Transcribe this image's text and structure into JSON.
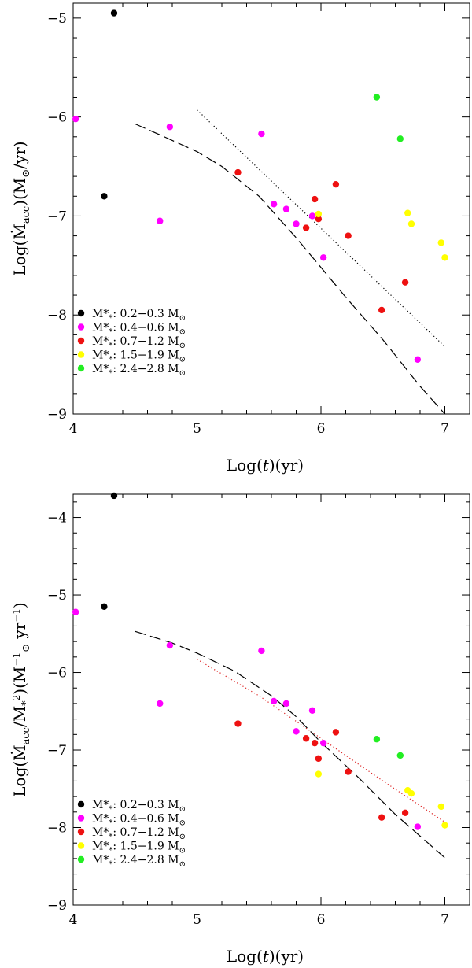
{
  "colors": {
    "black": "#000000",
    "magenta": "#ff00ff",
    "red": "#ee1111",
    "yellow": "#ffff00",
    "green": "#22ee22",
    "dotted_red": "#dd2222"
  },
  "chart_data": [
    {
      "type": "scatter",
      "title": "",
      "xlabel": "Log(t)(yr)",
      "ylabel": "Log(Ṁacc)(M⊙/yr)",
      "xlim": [
        4,
        7.2
      ],
      "ylim": [
        -9,
        -4.85
      ],
      "xticks": [
        4,
        5,
        6,
        7
      ],
      "yticks": [
        -9,
        -8,
        -7,
        -6,
        -5
      ],
      "tick_labels_x": [
        "4",
        "5",
        "6",
        "7"
      ],
      "tick_labels_y": [
        "−9",
        "−8",
        "−7",
        "−6",
        "−5"
      ],
      "legend": [
        {
          "color": "black",
          "name": "M*",
          "range": "0.2−0.3",
          "unit": "M⊙"
        },
        {
          "color": "magenta",
          "name": "M*",
          "range": "0.4−0.6",
          "unit": "M⊙"
        },
        {
          "color": "red",
          "name": "M*",
          "range": "0.7−1.2",
          "unit": "M⊙"
        },
        {
          "color": "yellow",
          "name": "M*",
          "range": "1.5−1.9",
          "unit": "M⊙"
        },
        {
          "color": "green",
          "name": "M*",
          "range": "2.4−2.8",
          "unit": "M⊙"
        }
      ],
      "legend_position": "bottom-left",
      "series": [
        {
          "name": "M*: 0.2−0.3 M⊙",
          "color": "black",
          "points": [
            [
              4.33,
              -4.95
            ],
            [
              4.25,
              -6.8
            ]
          ]
        },
        {
          "name": "M*: 0.4−0.6 M⊙",
          "color": "magenta",
          "points": [
            [
              4.02,
              -6.02
            ],
            [
              4.78,
              -6.1
            ],
            [
              4.7,
              -7.05
            ],
            [
              5.52,
              -6.17
            ],
            [
              5.62,
              -6.88
            ],
            [
              5.72,
              -6.93
            ],
            [
              5.8,
              -7.08
            ],
            [
              5.93,
              -7.0
            ],
            [
              6.02,
              -7.42
            ],
            [
              6.78,
              -8.45
            ]
          ]
        },
        {
          "name": "M*: 0.7−1.2 M⊙",
          "color": "red",
          "points": [
            [
              5.33,
              -6.56
            ],
            [
              5.88,
              -7.12
            ],
            [
              5.95,
              -6.83
            ],
            [
              5.98,
              -7.03
            ],
            [
              6.12,
              -6.68
            ],
            [
              6.22,
              -7.2
            ],
            [
              6.49,
              -7.95
            ],
            [
              6.68,
              -7.67
            ]
          ]
        },
        {
          "name": "M*: 1.5−1.9 M⊙",
          "color": "yellow",
          "points": [
            [
              5.98,
              -6.98
            ],
            [
              6.7,
              -6.97
            ],
            [
              6.73,
              -7.08
            ],
            [
              6.97,
              -7.27
            ],
            [
              7.0,
              -7.42
            ]
          ]
        },
        {
          "name": "M*: 2.4−2.8 M⊙",
          "color": "green",
          "points": [
            [
              6.45,
              -5.8
            ],
            [
              6.64,
              -6.22
            ]
          ]
        }
      ],
      "curves": [
        {
          "name": "dashed model",
          "style": "dashed",
          "color": "black",
          "points": [
            [
              4.5,
              -6.07
            ],
            [
              4.7,
              -6.18
            ],
            [
              5.0,
              -6.35
            ],
            [
              5.2,
              -6.5
            ],
            [
              5.5,
              -6.8
            ],
            [
              5.8,
              -7.22
            ],
            [
              6.0,
              -7.52
            ],
            [
              6.2,
              -7.82
            ],
            [
              6.5,
              -8.25
            ],
            [
              6.8,
              -8.72
            ],
            [
              7.0,
              -9.0
            ]
          ]
        },
        {
          "name": "dotted fit",
          "style": "dotted",
          "color": "black",
          "points": [
            [
              5.0,
              -5.93
            ],
            [
              7.0,
              -8.32
            ]
          ]
        }
      ]
    },
    {
      "type": "scatter",
      "title": "",
      "xlabel": "Log(t)(yr)",
      "ylabel": "Log(Ṁacc/M*²)(M⊙⁻¹ yr⁻¹)",
      "xlim": [
        4,
        7.2
      ],
      "ylim": [
        -9,
        -3.7
      ],
      "xticks": [
        4,
        5,
        6,
        7
      ],
      "yticks": [
        -9,
        -8,
        -7,
        -6,
        -5,
        -4
      ],
      "tick_labels_x": [
        "4",
        "5",
        "6",
        "7"
      ],
      "tick_labels_y": [
        "−9",
        "−8",
        "−7",
        "−6",
        "−5",
        "−4"
      ],
      "legend": [
        {
          "color": "black",
          "name": "M*",
          "range": "0.2−0.3",
          "unit": "M⊙"
        },
        {
          "color": "magenta",
          "name": "M*",
          "range": "0.4−0.6",
          "unit": "M⊙"
        },
        {
          "color": "red",
          "name": "M*",
          "range": "0.7−1.2",
          "unit": "M⊙"
        },
        {
          "color": "yellow",
          "name": "M*",
          "range": "1.5−1.9",
          "unit": "M⊙"
        },
        {
          "color": "green",
          "name": "M*",
          "range": "2.4−2.8",
          "unit": "M⊙"
        }
      ],
      "legend_position": "bottom-left",
      "series": [
        {
          "name": "M*: 0.2−0.3 M⊙",
          "color": "black",
          "points": [
            [
              4.33,
              -3.72
            ],
            [
              4.25,
              -5.15
            ]
          ]
        },
        {
          "name": "M*: 0.4−0.6 M⊙",
          "color": "magenta",
          "points": [
            [
              4.02,
              -5.22
            ],
            [
              4.78,
              -5.65
            ],
            [
              4.7,
              -6.4
            ],
            [
              5.52,
              -5.72
            ],
            [
              5.62,
              -6.37
            ],
            [
              5.72,
              -6.4
            ],
            [
              5.8,
              -6.76
            ],
            [
              5.93,
              -6.49
            ],
            [
              6.02,
              -6.91
            ],
            [
              6.78,
              -7.99
            ]
          ]
        },
        {
          "name": "M*: 0.7−1.2 M⊙",
          "color": "red",
          "points": [
            [
              5.33,
              -6.66
            ],
            [
              5.88,
              -6.85
            ],
            [
              5.95,
              -6.91
            ],
            [
              5.98,
              -7.11
            ],
            [
              6.12,
              -6.77
            ],
            [
              6.22,
              -7.28
            ],
            [
              6.49,
              -7.87
            ],
            [
              6.68,
              -7.81
            ]
          ]
        },
        {
          "name": "M*: 1.5−1.9 M⊙",
          "color": "yellow",
          "points": [
            [
              5.98,
              -7.31
            ],
            [
              6.7,
              -7.52
            ],
            [
              6.73,
              -7.56
            ],
            [
              6.97,
              -7.73
            ],
            [
              7.0,
              -7.97
            ]
          ]
        },
        {
          "name": "M*: 2.4−2.8 M⊙",
          "color": "green",
          "points": [
            [
              6.45,
              -6.86
            ],
            [
              6.64,
              -7.07
            ]
          ]
        }
      ],
      "curves": [
        {
          "name": "dashed model",
          "style": "dashed",
          "color": "black",
          "points": [
            [
              4.5,
              -5.47
            ],
            [
              4.8,
              -5.62
            ],
            [
              5.0,
              -5.75
            ],
            [
              5.3,
              -5.98
            ],
            [
              5.6,
              -6.3
            ],
            [
              5.8,
              -6.57
            ],
            [
              6.0,
              -6.9
            ],
            [
              6.3,
              -7.35
            ],
            [
              6.6,
              -7.83
            ],
            [
              7.0,
              -8.39
            ]
          ]
        },
        {
          "name": "dotted fit",
          "style": "dotted",
          "color": "dotted_red",
          "points": [
            [
              5.0,
              -5.83
            ],
            [
              5.5,
              -6.3
            ],
            [
              6.0,
              -6.85
            ],
            [
              6.5,
              -7.4
            ],
            [
              7.0,
              -7.93
            ]
          ]
        }
      ]
    }
  ]
}
